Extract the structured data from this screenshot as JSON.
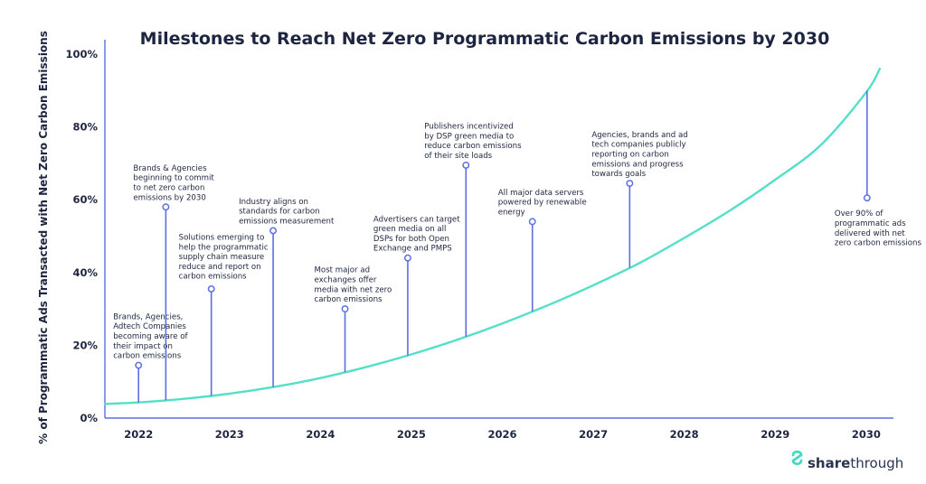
{
  "chart_data": {
    "type": "line",
    "title": "Milestones to Reach Net Zero Programmatic Carbon Emissions by 2030",
    "ylabel": "% of Programmatic Ads Transacted with Net Zero Carbon Emissions",
    "xlabel": "",
    "xlim": [
      2021.63,
      2030.3
    ],
    "ylim": [
      0,
      100
    ],
    "y_ticks": [
      "0%",
      "20%",
      "40%",
      "60%",
      "80%",
      "100%"
    ],
    "y_tick_values": [
      0,
      20,
      40,
      60,
      80,
      100
    ],
    "x_ticks": [
      "2022",
      "2023",
      "2024",
      "2025",
      "2026",
      "2027",
      "2028",
      "2029",
      "2030"
    ],
    "x_tick_values": [
      2022,
      2023,
      2024,
      2025,
      2026,
      2027,
      2028,
      2029,
      2030
    ],
    "grid": false,
    "curve": {
      "x": [
        2021.63,
        2022,
        2022.5,
        2023,
        2023.5,
        2024,
        2024.5,
        2025,
        2025.5,
        2026,
        2026.5,
        2027,
        2027.5,
        2028,
        2028.5,
        2029,
        2029.5,
        2030,
        2030.15
      ],
      "y": [
        3.9,
        4.3,
        5.3,
        6.7,
        8.6,
        11.0,
        14.0,
        17.5,
        21.5,
        26.0,
        31.0,
        36.5,
        42.5,
        49.5,
        57.0,
        65.5,
        75.0,
        89.5,
        96.0
      ]
    },
    "milestones": [
      {
        "x": 2022.0,
        "y_marker": 14.5,
        "lines": [
          "Brands, Agencies,",
          "Adtech Companies",
          "becoming aware of",
          "their impact on",
          "carbon emissions"
        ]
      },
      {
        "x": 2022.3,
        "y_marker": 58.0,
        "lines": [
          "Brands & Agencies",
          "beginning to commit",
          "to net zero carbon",
          "emissions by 2030"
        ]
      },
      {
        "x": 2022.8,
        "y_marker": 35.5,
        "lines": [
          "Solutions emerging to",
          "help the programmatic",
          "supply chain measure",
          "reduce and report on",
          "carbon emissions"
        ]
      },
      {
        "x": 2023.48,
        "y_marker": 51.5,
        "lines": [
          "Industry aligns on",
          "standards for carbon",
          "emissions measurement"
        ]
      },
      {
        "x": 2024.27,
        "y_marker": 30.0,
        "lines": [
          "Most major ad",
          "exchanges offer",
          "media with net zero",
          "carbon emissions"
        ]
      },
      {
        "x": 2024.96,
        "y_marker": 44.0,
        "lines": [
          "Advertisers can target",
          "green media on all",
          "DSPs for both Open",
          "Exchange and PMPS"
        ]
      },
      {
        "x": 2025.6,
        "y_marker": 69.5,
        "lines": [
          "Publishers incentivized",
          "by DSP green media to",
          "reduce carbon emissions",
          "of their site loads"
        ]
      },
      {
        "x": 2026.33,
        "y_marker": 54.0,
        "lines": [
          "All major data servers",
          "powered by renewable",
          "energy"
        ]
      },
      {
        "x": 2027.4,
        "y_marker": 64.5,
        "lines": [
          "Agencies, brands and ad",
          "tech companies publicly",
          "reporting on carbon",
          "emissions and progress",
          "towards goals"
        ]
      },
      {
        "x": 2030.01,
        "y_marker": 60.5,
        "lines": [
          "Over 90% of",
          "programmatic ads",
          "delivered with net",
          "zero carbon emissions"
        ]
      }
    ]
  },
  "brand": {
    "strong": "share",
    "rest": "through"
  },
  "colors": {
    "curve": "#53e0c7",
    "stem": "#5b6fe3",
    "text": "#1d2540",
    "axis": "#5b6fe3",
    "brand_icon": "#42d9bf"
  }
}
